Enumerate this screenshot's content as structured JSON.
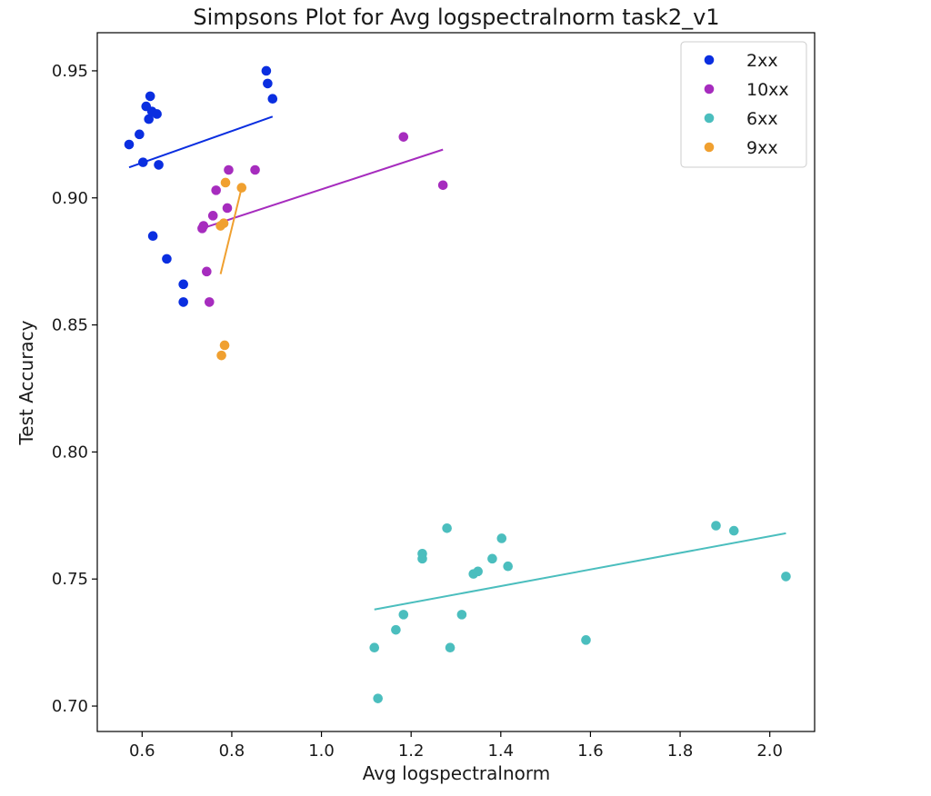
{
  "chart_data": {
    "type": "scatter",
    "title": "Simpsons Plot for Avg logspectralnorm task2_v1",
    "xlabel": "Avg logspectralnorm",
    "ylabel": "Test Accuracy",
    "xlim": [
      0.5,
      2.1
    ],
    "ylim": [
      0.69,
      0.965
    ],
    "xticks": [
      0.6,
      0.8,
      1.0,
      1.2,
      1.4,
      1.6,
      1.8,
      2.0
    ],
    "xtick_labels": [
      "0.6",
      "0.8",
      "1.0",
      "1.2",
      "1.4",
      "1.6",
      "1.8",
      "2.0"
    ],
    "yticks": [
      0.7,
      0.75,
      0.8,
      0.85,
      0.9,
      0.95
    ],
    "ytick_labels": [
      "0.70",
      "0.75",
      "0.80",
      "0.85",
      "0.90",
      "0.95"
    ],
    "grid": false,
    "legend_position": "top-right",
    "series": [
      {
        "name": "2xx",
        "color": "#0a2ee0",
        "points": [
          [
            0.571,
            0.921
          ],
          [
            0.594,
            0.925
          ],
          [
            0.602,
            0.914
          ],
          [
            0.609,
            0.936
          ],
          [
            0.615,
            0.931
          ],
          [
            0.618,
            0.94
          ],
          [
            0.622,
            0.934
          ],
          [
            0.624,
            0.885
          ],
          [
            0.633,
            0.933
          ],
          [
            0.637,
            0.913
          ],
          [
            0.655,
            0.876
          ],
          [
            0.692,
            0.866
          ],
          [
            0.692,
            0.859
          ],
          [
            0.877,
            0.95
          ],
          [
            0.88,
            0.945
          ],
          [
            0.891,
            0.939
          ]
        ],
        "fit": [
          [
            0.571,
            0.912
          ],
          [
            0.891,
            0.932
          ]
        ]
      },
      {
        "name": "10xx",
        "color": "#a62cbe",
        "points": [
          [
            0.734,
            0.888
          ],
          [
            0.737,
            0.889
          ],
          [
            0.744,
            0.871
          ],
          [
            0.75,
            0.859
          ],
          [
            0.758,
            0.893
          ],
          [
            0.765,
            0.903
          ],
          [
            0.79,
            0.896
          ],
          [
            0.793,
            0.911
          ],
          [
            0.852,
            0.911
          ],
          [
            1.183,
            0.924
          ],
          [
            1.271,
            0.905
          ]
        ],
        "fit": [
          [
            0.734,
            0.888
          ],
          [
            1.271,
            0.919
          ]
        ]
      },
      {
        "name": "6xx",
        "color": "#4bbebe",
        "points": [
          [
            1.118,
            0.723
          ],
          [
            1.126,
            0.703
          ],
          [
            1.166,
            0.73
          ],
          [
            1.183,
            0.736
          ],
          [
            1.225,
            0.76
          ],
          [
            1.225,
            0.758
          ],
          [
            1.28,
            0.77
          ],
          [
            1.287,
            0.723
          ],
          [
            1.313,
            0.736
          ],
          [
            1.339,
            0.752
          ],
          [
            1.349,
            0.753
          ],
          [
            1.381,
            0.758
          ],
          [
            1.402,
            0.766
          ],
          [
            1.416,
            0.755
          ],
          [
            1.59,
            0.726
          ],
          [
            1.88,
            0.771
          ],
          [
            1.92,
            0.769
          ],
          [
            2.036,
            0.751
          ]
        ],
        "fit": [
          [
            1.118,
            0.738
          ],
          [
            2.036,
            0.768
          ]
        ]
      },
      {
        "name": "9xx",
        "color": "#f0a030",
        "points": [
          [
            0.775,
            0.889
          ],
          [
            0.777,
            0.838
          ],
          [
            0.782,
            0.89
          ],
          [
            0.784,
            0.842
          ],
          [
            0.786,
            0.906
          ],
          [
            0.822,
            0.904
          ]
        ],
        "fit": [
          [
            0.775,
            0.87
          ],
          [
            0.822,
            0.904
          ]
        ]
      }
    ]
  }
}
